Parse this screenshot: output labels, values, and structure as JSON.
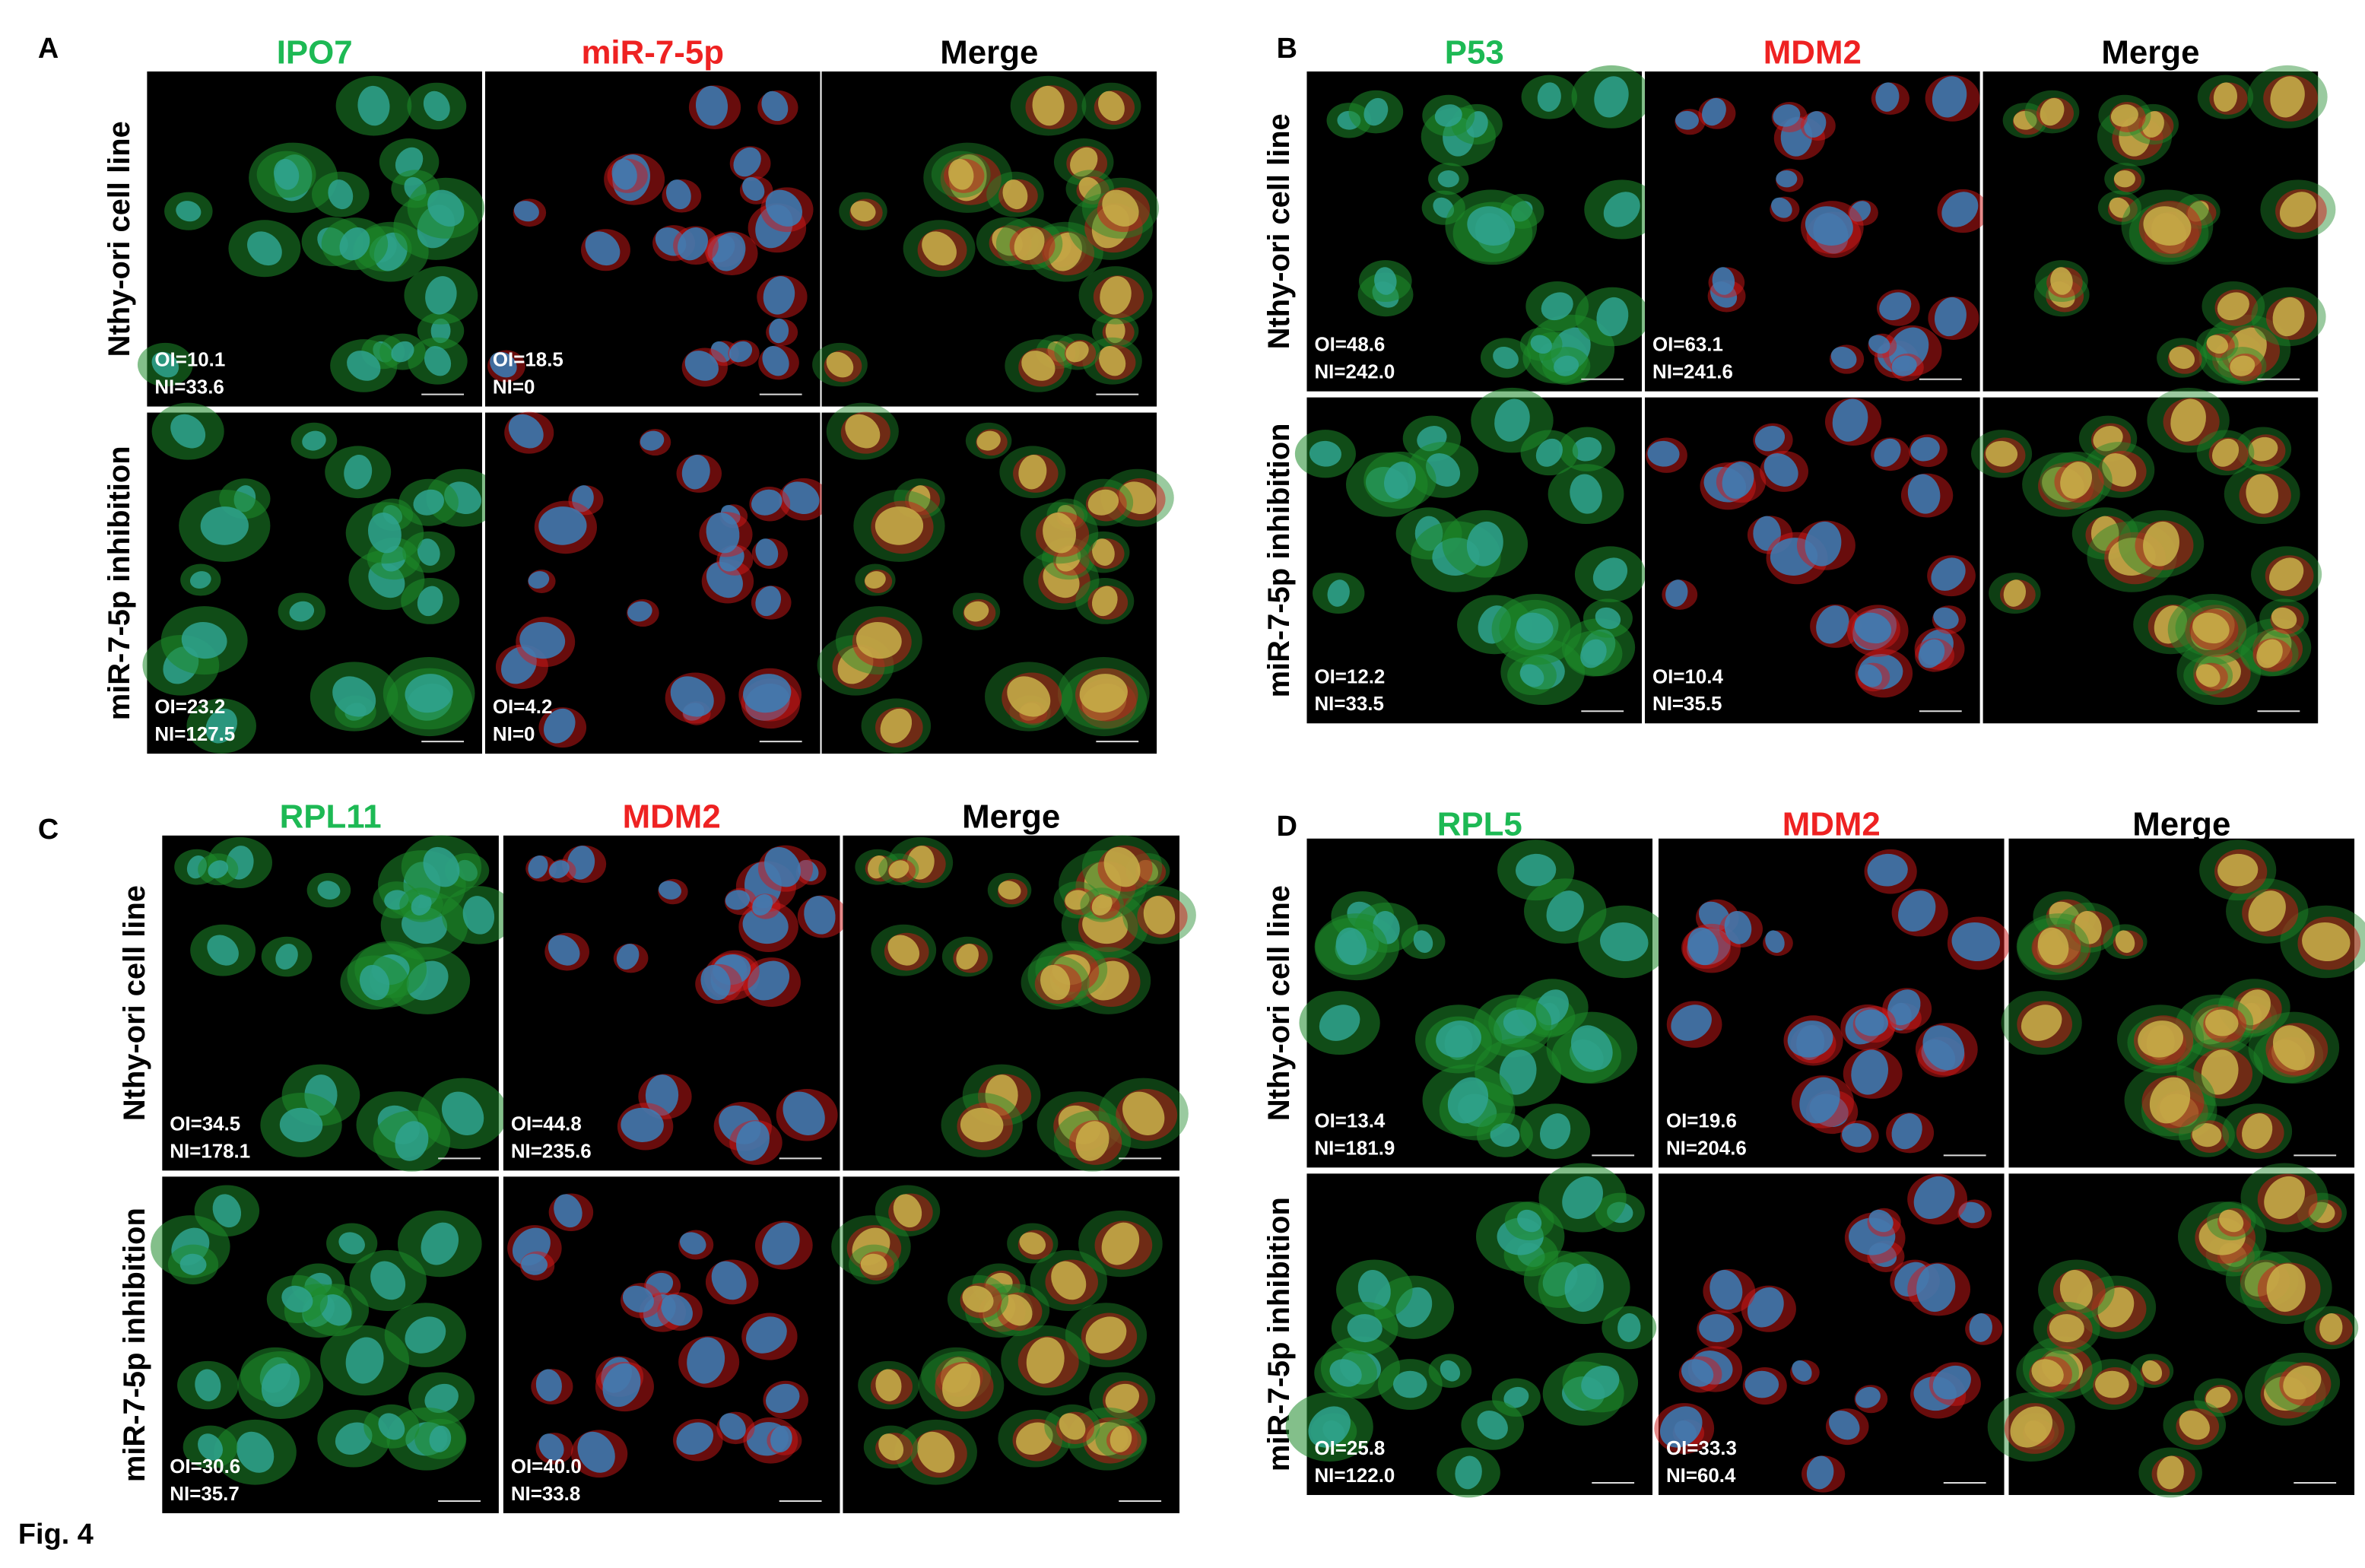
{
  "figure_label": "Fig. 4",
  "panels": [
    {
      "letter": "A",
      "columns": [
        "IPO7",
        "miR-7-5p",
        "Merge"
      ],
      "rows": [
        {
          "label": "Nthy-ori cell line",
          "stats": [
            {
              "oi": "OI=10.1",
              "ni": "NI=33.6"
            },
            {
              "oi": "OI=18.5",
              "ni": "NI=0"
            }
          ]
        },
        {
          "label": "miR-7-5p inhibition",
          "stats": [
            {
              "oi": "OI=23.2",
              "ni": "NI=127.5"
            },
            {
              "oi": "OI=4.2",
              "ni": "NI=0"
            }
          ]
        }
      ]
    },
    {
      "letter": "B",
      "columns": [
        "P53",
        "MDM2",
        "Merge"
      ],
      "rows": [
        {
          "label": "Nthy-ori cell line",
          "stats": [
            {
              "oi": "OI=48.6",
              "ni": "NI=242.0"
            },
            {
              "oi": "OI=63.1",
              "ni": "NI=241.6"
            }
          ]
        },
        {
          "label": "miR-7-5p inhibition",
          "stats": [
            {
              "oi": "OI=12.2",
              "ni": "NI=33.5"
            },
            {
              "oi": "OI=10.4",
              "ni": "NI=35.5"
            }
          ]
        }
      ]
    },
    {
      "letter": "C",
      "columns": [
        "RPL11",
        "MDM2",
        "Merge"
      ],
      "rows": [
        {
          "label": "Nthy-ori cell line",
          "stats": [
            {
              "oi": "OI=34.5",
              "ni": "NI=178.1"
            },
            {
              "oi": "OI=44.8",
              "ni": "NI=235.6"
            }
          ]
        },
        {
          "label": "miR-7-5p inhibition",
          "stats": [
            {
              "oi": "OI=30.6",
              "ni": "NI=35.7"
            },
            {
              "oi": "OI=40.0",
              "ni": "NI=33.8"
            }
          ]
        }
      ]
    },
    {
      "letter": "D",
      "columns": [
        "RPL5",
        "MDM2",
        "Merge"
      ],
      "rows": [
        {
          "label": "Nthy-ori cell line",
          "stats": [
            {
              "oi": "OI=13.4",
              "ni": "NI=181.9"
            },
            {
              "oi": "OI=19.6",
              "ni": "NI=204.6"
            }
          ]
        },
        {
          "label": "miR-7-5p inhibition",
          "stats": [
            {
              "oi": "OI=25.8",
              "ni": "NI=122.0"
            },
            {
              "oi": "OI=33.3",
              "ni": "NI=60.4"
            }
          ]
        }
      ]
    }
  ]
}
